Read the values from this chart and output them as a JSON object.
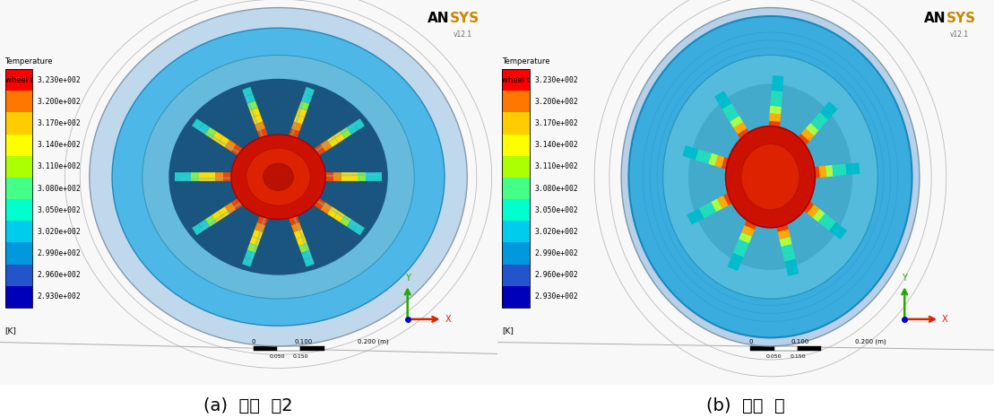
{
  "caption_a": "(a)  기본  휠2",
  "caption_b": "(b)  개발  휠",
  "ansys_an": "AN",
  "ansys_sys": "SYS",
  "ansys_version": "v12.1",
  "colorbar_title_line1": "Temperature",
  "colorbar_title_line2": "wheel t",
  "colorbar_labels": [
    "3.230e+002",
    "3.200e+002",
    "3.170e+002",
    "3.140e+002",
    "3.110e+002",
    "3.080e+002",
    "3.050e+002",
    "3.020e+002",
    "2.990e+002",
    "2.960e+002",
    "2.930e+002"
  ],
  "colorbar_unit": "[K]",
  "colorbar_colors": [
    "#ff0000",
    "#ff7700",
    "#ffcc00",
    "#ffff00",
    "#aaff00",
    "#44ff88",
    "#00ffcc",
    "#00ccee",
    "#0099dd",
    "#2255cc",
    "#0000bb"
  ],
  "bg_white": "#ffffff",
  "bg_light": "#f5f5f5",
  "rim_blue": "#4db8e8",
  "rim_blue_dark": "#2288bb",
  "rim_blue_inner": "#88ccee",
  "hub_red": "#dd1100",
  "spoke_colors": [
    "#cc1100",
    "#ee4400",
    "#ff8800",
    "#ffcc00",
    "#88ff44",
    "#22ccbb"
  ],
  "tire_gray": "#d0dce8",
  "scale_text_top": "0           0.100          0.200 (m)",
  "scale_text_bot": "0.050                   0.150",
  "coord_x_color": "#dd2200",
  "coord_y_color": "#22aa00",
  "coord_z_color": "#0000cc"
}
